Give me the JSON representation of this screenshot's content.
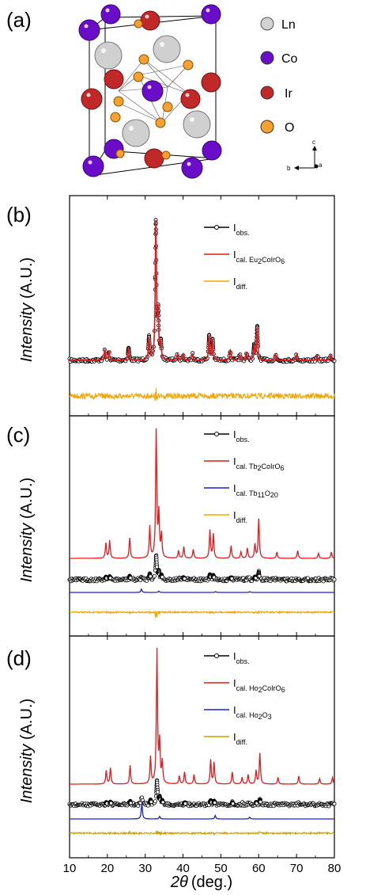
{
  "panel_a": {
    "label": "(a)",
    "legend": [
      {
        "name": "Ln",
        "color": "#d3d3d3"
      },
      {
        "name": "Co",
        "color": "#6a0dc8"
      },
      {
        "name": "Ir",
        "color": "#c0282a"
      },
      {
        "name": "O",
        "color": "#f5a030"
      }
    ],
    "axes_labels": {
      "c": "c",
      "b": "b",
      "a": "a"
    }
  },
  "chart_data": [
    {
      "type": "line",
      "panel": "(b)",
      "title": "",
      "xlabel": "2θ (deg.)",
      "ylabel": "Intensity (A.U.)",
      "xlim": [
        10,
        80
      ],
      "xticks": [
        10,
        20,
        30,
        40,
        50,
        60,
        70,
        80
      ],
      "series": [
        {
          "name": "I",
          "subscript": "obs.",
          "color": "#000000",
          "style": "open-circles"
        },
        {
          "name": "I",
          "subscript": "cal. Eu",
          "sub_parts": [
            "cal. Eu",
            "2",
            "CoIrO",
            "6"
          ],
          "color": "#e41a1c",
          "style": "line"
        },
        {
          "name": "I",
          "subscript": "diff.",
          "color": "#f5a300",
          "style": "line"
        }
      ],
      "peaks_2theta": [
        19.3,
        20.4,
        25.6,
        31.0,
        32.8,
        33.4,
        34.1,
        38.5,
        40.0,
        42.5,
        46.9,
        47.8,
        52.5,
        55.0,
        56.8,
        58.8,
        59.6,
        64.5,
        70.0,
        75.5,
        79.0
      ],
      "peaks_rel_intensity": [
        0.08,
        0.07,
        0.09,
        0.16,
        1.0,
        0.32,
        0.12,
        0.04,
        0.05,
        0.05,
        0.18,
        0.15,
        0.08,
        0.04,
        0.06,
        0.1,
        0.24,
        0.04,
        0.04,
        0.03,
        0.04
      ]
    },
    {
      "type": "line",
      "panel": "(c)",
      "title": "",
      "xlabel": "2θ (deg.)",
      "ylabel": "Intensity (A.U.)",
      "xlim": [
        10,
        80
      ],
      "xticks": [
        10,
        20,
        30,
        40,
        50,
        60,
        70,
        80
      ],
      "series": [
        {
          "name": "I",
          "subscript": "obs.",
          "color": "#000000",
          "style": "open-circles"
        },
        {
          "name": "I",
          "subscript": "cal. Tb",
          "sub_parts": [
            "cal. Tb",
            "2",
            "CoIrO",
            "6"
          ],
          "color": "#e41a1c",
          "style": "line"
        },
        {
          "name": "I",
          "subscript": "cal. Tb",
          "sub_parts": [
            "cal. Tb",
            "11",
            "O",
            "20"
          ],
          "color": "#1f1fd0",
          "style": "line"
        },
        {
          "name": "I",
          "subscript": "diff.",
          "color": "#f5a300",
          "style": "line"
        }
      ],
      "peaks_2theta": [
        19.6,
        20.6,
        25.9,
        31.2,
        32.9,
        33.6,
        34.3,
        38.8,
        40.2,
        42.7,
        47.1,
        48.0,
        52.7,
        55.3,
        57.0,
        59.0,
        60.0,
        64.8,
        70.3,
        75.8,
        79.2
      ],
      "peaks_rel_intensity": [
        0.12,
        0.14,
        0.16,
        0.25,
        1.0,
        0.34,
        0.18,
        0.06,
        0.09,
        0.07,
        0.22,
        0.19,
        0.1,
        0.05,
        0.08,
        0.11,
        0.31,
        0.05,
        0.06,
        0.04,
        0.05
      ],
      "impurity_peaks_2theta": [
        29.0,
        33.6,
        48.6,
        57.6
      ],
      "impurity_rel_intensity": [
        0.3,
        0.12,
        0.08,
        0.07
      ]
    },
    {
      "type": "line",
      "panel": "(d)",
      "title": "",
      "xlabel": "2θ (deg.)",
      "ylabel": "Intensity (A.U.)",
      "xlim": [
        10,
        80
      ],
      "xticks": [
        10,
        20,
        30,
        40,
        50,
        60,
        70,
        80
      ],
      "series": [
        {
          "name": "I",
          "subscript": "obs.",
          "color": "#000000",
          "style": "open-circles"
        },
        {
          "name": "I",
          "subscript": "cal. Ho",
          "sub_parts": [
            "cal. Ho",
            "2",
            "CoIrO",
            "6"
          ],
          "color": "#e41a1c",
          "style": "line"
        },
        {
          "name": "I",
          "subscript": "cal. Ho",
          "sub_parts": [
            "cal. Ho",
            "2",
            "O",
            "3"
          ],
          "color": "#1f1fd0",
          "style": "line"
        },
        {
          "name": "I",
          "subscript": "diff.",
          "color": "#c8a000",
          "style": "line"
        }
      ],
      "peaks_2theta": [
        19.7,
        20.8,
        26.0,
        31.4,
        33.1,
        33.8,
        34.5,
        39.0,
        40.4,
        42.9,
        47.3,
        48.2,
        53.0,
        55.6,
        57.2,
        59.3,
        60.3,
        65.1,
        70.6,
        76.1,
        79.5
      ],
      "peaks_rel_intensity": [
        0.1,
        0.12,
        0.14,
        0.2,
        1.0,
        0.3,
        0.16,
        0.06,
        0.09,
        0.07,
        0.18,
        0.16,
        0.09,
        0.05,
        0.07,
        0.1,
        0.23,
        0.05,
        0.06,
        0.04,
        0.05
      ],
      "impurity_peaks_2theta": [
        29.1,
        33.8,
        48.5,
        57.6
      ],
      "impurity_rel_intensity": [
        0.9,
        0.15,
        0.2,
        0.1
      ]
    }
  ],
  "axis": {
    "xlabel_theta": "2θ",
    "xlabel_unit": "(deg.)",
    "ylabel_italic": "Intensity",
    "ylabel_unit": " (A.U.)"
  }
}
